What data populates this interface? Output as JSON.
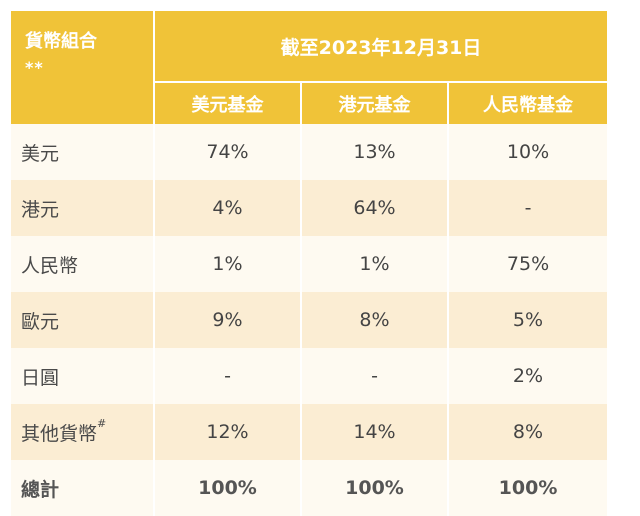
{
  "header": {
    "corner_label": "貨幣組合",
    "corner_stars": "**",
    "date_label": "截至2023年12月31日",
    "funds": [
      "美元基金",
      "港元基金",
      "人民幣基金"
    ]
  },
  "rows": [
    {
      "label": "美元",
      "values": [
        "74%",
        "13%",
        "10%"
      ]
    },
    {
      "label": "港元",
      "values": [
        "4%",
        "64%",
        "-"
      ]
    },
    {
      "label": "人民幣",
      "values": [
        "1%",
        "1%",
        "75%"
      ]
    },
    {
      "label": "歐元",
      "values": [
        "9%",
        "8%",
        "5%"
      ]
    },
    {
      "label": "日圓",
      "values": [
        "-",
        "-",
        "2%"
      ]
    },
    {
      "label": "其他貨幣",
      "sup": "#",
      "values": [
        "12%",
        "14%",
        "8%"
      ]
    }
  ],
  "total": {
    "label": "總計",
    "values": [
      "100%",
      "100%",
      "100%"
    ]
  },
  "colors": {
    "header": "#f0c338",
    "row_light": "#fefaf1",
    "row_dark": "#fbedd3"
  }
}
